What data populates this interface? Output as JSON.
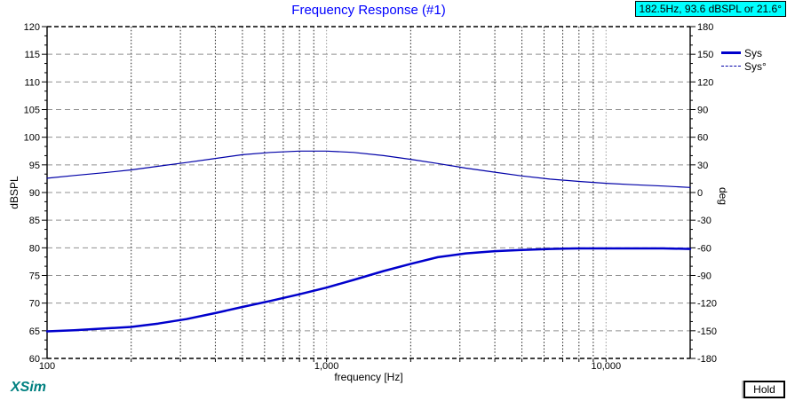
{
  "window": {
    "cursor_readout": "182.5Hz, 93.6 dBSPL or 21.6°",
    "brand": "XSim",
    "hold_button_label": "Hold"
  },
  "colors": {
    "title": "#0000FF",
    "badge_bg": "#00FFFF",
    "brand": "#008080",
    "spl_curve": "#0000CC",
    "phase_curve": "#0000A8",
    "grid_major": "#909090",
    "grid_minor_vertical": "#202020"
  },
  "chart_data": {
    "type": "line",
    "title": "Frequency Response (#1)",
    "xlabel": "frequency [Hz]",
    "ylabel_left": "dBSPL",
    "ylabel_right": "deg",
    "x_scale": "log",
    "xlim": [
      100,
      20000
    ],
    "x_ticks": [
      100,
      1000,
      10000
    ],
    "x_tick_labels": [
      "100",
      "1,000",
      "10,000"
    ],
    "ylim_left": [
      60,
      120
    ],
    "y_ticks_left": [
      120,
      115,
      110,
      105,
      100,
      95,
      90,
      85,
      80,
      75,
      70,
      65,
      60
    ],
    "ylim_right": [
      -180,
      180
    ],
    "y_ticks_right": [
      180,
      150,
      120,
      90,
      60,
      30,
      0,
      -30,
      -60,
      -90,
      -120,
      -150,
      -180
    ],
    "grid": true,
    "legend_position": "top-right-outside",
    "legend": [
      "Sys",
      "Sys°"
    ],
    "series": [
      {
        "name": "Sys",
        "axis": "left",
        "unit": "dBSPL",
        "color": "#0000CC",
        "width": 2.5,
        "style": "solid",
        "x": [
          100,
          125,
          160,
          200,
          250,
          315,
          400,
          500,
          630,
          800,
          1000,
          1250,
          1600,
          2000,
          2500,
          3150,
          4000,
          5000,
          6300,
          8000,
          10000,
          12500,
          16000,
          20000
        ],
        "y": [
          64.9,
          65.1,
          65.4,
          65.7,
          66.3,
          67.1,
          68.2,
          69.3,
          70.4,
          71.6,
          72.8,
          74.2,
          75.8,
          77.1,
          78.3,
          79.0,
          79.4,
          79.6,
          79.8,
          79.9,
          79.9,
          79.9,
          79.9,
          79.8
        ]
      },
      {
        "name": "Sys°",
        "axis": "right",
        "unit": "deg",
        "color": "#0000A8",
        "width": 1.2,
        "style": "dashed",
        "x": [
          100,
          125,
          160,
          200,
          250,
          315,
          400,
          500,
          630,
          800,
          1000,
          1250,
          1600,
          2000,
          2500,
          3150,
          4000,
          5000,
          6300,
          8000,
          10000,
          12500,
          16000,
          20000
        ],
        "y": [
          15.5,
          18.5,
          21.5,
          24.5,
          28.5,
          32.5,
          37,
          41,
          43.5,
          45,
          45,
          43.5,
          40,
          36,
          31.5,
          26.5,
          22,
          18,
          14.5,
          12,
          10,
          8.5,
          7,
          5.5
        ]
      }
    ]
  }
}
